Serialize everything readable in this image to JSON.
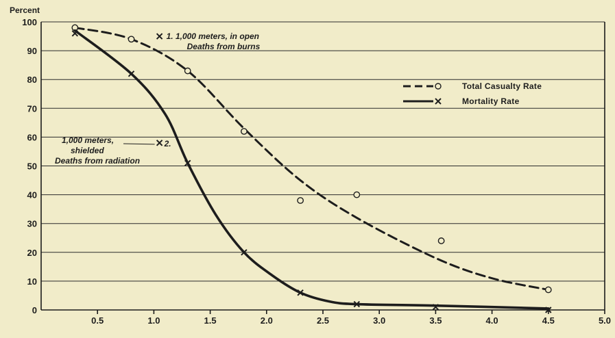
{
  "chart_data": {
    "type": "line",
    "title": "",
    "xlabel": "",
    "ylabel": "Percent",
    "xlim": [
      0,
      5.0
    ],
    "ylim": [
      0,
      100
    ],
    "x_ticks": [
      "0.5",
      "1.0",
      "1.5",
      "2.0",
      "2.5",
      "3.0",
      "3.5",
      "4.0",
      "4.5",
      "5.0"
    ],
    "y_ticks": [
      "0",
      "10",
      "20",
      "30",
      "40",
      "50",
      "60",
      "70",
      "80",
      "90",
      "100"
    ],
    "grid": "horizontal",
    "legend": "right",
    "series": [
      {
        "name": "Total Casualty Rate",
        "line_style": "dashed",
        "marker": "o",
        "color": "#1d1d1d",
        "points": [
          {
            "x": 0.3,
            "y": 98
          },
          {
            "x": 0.8,
            "y": 94
          },
          {
            "x": 1.3,
            "y": 83
          },
          {
            "x": 1.8,
            "y": 62
          },
          {
            "x": 2.3,
            "y": 38
          },
          {
            "x": 2.8,
            "y": 40
          },
          {
            "x": 3.55,
            "y": 24
          },
          {
            "x": 4.5,
            "y": 7
          }
        ],
        "curve": [
          {
            "x": 0.3,
            "y": 98
          },
          {
            "x": 0.8,
            "y": 94
          },
          {
            "x": 1.3,
            "y": 83
          },
          {
            "x": 1.8,
            "y": 63
          },
          {
            "x": 2.3,
            "y": 45
          },
          {
            "x": 2.8,
            "y": 32
          },
          {
            "x": 3.5,
            "y": 18
          },
          {
            "x": 4.0,
            "y": 11
          },
          {
            "x": 4.5,
            "y": 7
          }
        ]
      },
      {
        "name": "Mortality Rate",
        "line_style": "solid",
        "marker": "x",
        "color": "#1d1d1d",
        "points": [
          {
            "x": 0.3,
            "y": 96
          },
          {
            "x": 0.8,
            "y": 82
          },
          {
            "x": 1.3,
            "y": 51
          },
          {
            "x": 1.8,
            "y": 20
          },
          {
            "x": 2.3,
            "y": 6
          },
          {
            "x": 2.8,
            "y": 2
          },
          {
            "x": 3.5,
            "y": 1
          },
          {
            "x": 4.5,
            "y": 0
          }
        ],
        "curve": [
          {
            "x": 0.3,
            "y": 97
          },
          {
            "x": 0.8,
            "y": 82
          },
          {
            "x": 1.1,
            "y": 68
          },
          {
            "x": 1.3,
            "y": 51
          },
          {
            "x": 1.55,
            "y": 33
          },
          {
            "x": 1.8,
            "y": 20
          },
          {
            "x": 2.05,
            "y": 12
          },
          {
            "x": 2.3,
            "y": 6
          },
          {
            "x": 2.55,
            "y": 3
          },
          {
            "x": 2.8,
            "y": 2
          },
          {
            "x": 3.5,
            "y": 1.5
          },
          {
            "x": 4.5,
            "y": 0.5
          }
        ]
      }
    ],
    "annotations": [
      {
        "marker": "X",
        "x": 1.05,
        "y": 95,
        "lines": [
          "1. 1,000 meters, in open",
          "Deaths from burns"
        ]
      },
      {
        "marker": "X",
        "x": 1.05,
        "y": 58,
        "lines": [
          "1,000 meters,",
          "shielded",
          "Deaths from radiation"
        ],
        "label_after_marker": "2."
      }
    ]
  }
}
